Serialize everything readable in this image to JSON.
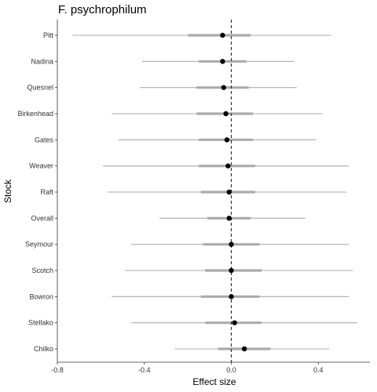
{
  "chart_data": {
    "type": "forest",
    "title": "F. psychrophilum",
    "xlabel": "Effect size",
    "ylabel": "Stock",
    "xlim": [
      -0.8,
      0.6
    ],
    "xticks": [
      -0.8,
      -0.4,
      0.0,
      0.4
    ],
    "xtick_labels": [
      "-0.8",
      "-0.4",
      "0.0",
      "0.4"
    ],
    "reference_line": 0,
    "grid": false,
    "categories": [
      "Pitt",
      "Nadina",
      "Quesnel",
      "Birkenhead",
      "Gates",
      "Weaver",
      "Raft",
      "Overall",
      "Seymour",
      "Scotch",
      "Bowron",
      "Stellako",
      "Chilko"
    ],
    "estimates": [
      -0.04,
      -0.04,
      -0.035,
      -0.025,
      -0.02,
      -0.015,
      -0.01,
      -0.01,
      0.0,
      0.0,
      0.0,
      0.015,
      0.06
    ],
    "inner_interval_lower": [
      -0.2,
      -0.15,
      -0.16,
      -0.16,
      -0.15,
      -0.15,
      -0.14,
      -0.11,
      -0.13,
      -0.12,
      -0.14,
      -0.12,
      -0.06
    ],
    "inner_interval_upper": [
      0.09,
      0.07,
      0.08,
      0.1,
      0.1,
      0.11,
      0.11,
      0.09,
      0.13,
      0.14,
      0.13,
      0.14,
      0.18
    ],
    "outer_interval_lower": [
      -0.73,
      -0.41,
      -0.42,
      -0.55,
      -0.52,
      -0.59,
      -0.57,
      -0.33,
      -0.46,
      -0.49,
      -0.55,
      -0.46,
      -0.26
    ],
    "outer_interval_upper": [
      0.46,
      0.29,
      0.3,
      0.42,
      0.39,
      0.54,
      0.53,
      0.34,
      0.54,
      0.56,
      0.54,
      0.58,
      0.45
    ]
  }
}
